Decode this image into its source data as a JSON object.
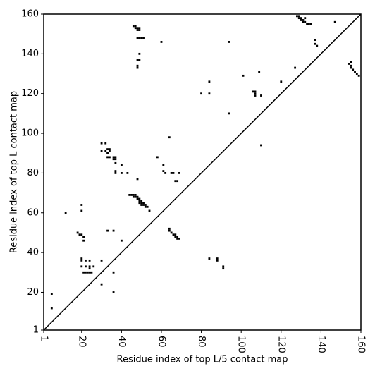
{
  "chart_data": {
    "type": "scatter",
    "xlabel": "Residue index of top L/5 contact map",
    "ylabel": "Residue index of top L contact map",
    "xlim": [
      1,
      160
    ],
    "ylim": [
      1,
      160
    ],
    "xticks": [
      1,
      20,
      40,
      60,
      80,
      100,
      120,
      140,
      160
    ],
    "yticks": [
      1,
      20,
      40,
      60,
      80,
      100,
      120,
      140,
      160
    ],
    "color": "#000000",
    "diagonal": true,
    "x": [
      46,
      47,
      47,
      48,
      48,
      49,
      49,
      48,
      49,
      50,
      51,
      49,
      48,
      49,
      48,
      48,
      60,
      94,
      84,
      84,
      80,
      94,
      101,
      106,
      107,
      107,
      107,
      109,
      110,
      120,
      127,
      128,
      129,
      129,
      130,
      130,
      131,
      131,
      132,
      132,
      133,
      134,
      135,
      137,
      137,
      138,
      147,
      154,
      155,
      155,
      155,
      156,
      157,
      158,
      159,
      30,
      32,
      30,
      32,
      33,
      34,
      33,
      34,
      33,
      34,
      36,
      36,
      37,
      37,
      37,
      37,
      37,
      40,
      40,
      43,
      48,
      44,
      45,
      46,
      46,
      47,
      47,
      48,
      48,
      49,
      49,
      50,
      50,
      51,
      51,
      52,
      52,
      53,
      49,
      50,
      54,
      58,
      61,
      61,
      62,
      64,
      65,
      66,
      67,
      68,
      69,
      12,
      20,
      20,
      5,
      5,
      18,
      19,
      20,
      21,
      21,
      20,
      20,
      22,
      24,
      20,
      22,
      24,
      24,
      26,
      21,
      22,
      23,
      24,
      25,
      30,
      30,
      33,
      36,
      36,
      36,
      40,
      64,
      64,
      65,
      66,
      67,
      67,
      68,
      68,
      69,
      84,
      88,
      88,
      91,
      91,
      110
    ],
    "values": [
      154,
      154,
      153,
      153,
      152,
      153,
      152,
      148,
      148,
      148,
      148,
      140,
      137,
      137,
      134,
      133,
      146,
      146,
      126,
      120,
      120,
      110,
      129,
      121,
      121,
      120,
      119,
      131,
      119,
      126,
      133,
      159,
      159,
      158,
      158,
      157,
      157,
      156,
      158,
      156,
      155,
      155,
      155,
      147,
      145,
      144,
      156,
      135,
      136,
      134,
      133,
      132,
      131,
      130,
      129,
      95,
      95,
      91,
      91,
      92,
      92,
      90,
      91,
      88,
      88,
      88,
      87,
      88,
      87,
      85,
      81,
      80,
      84,
      80,
      80,
      77,
      69,
      69,
      69,
      68,
      68,
      69,
      68,
      67,
      67,
      66,
      66,
      65,
      65,
      64,
      64,
      63,
      63,
      65,
      64,
      61,
      88,
      84,
      81,
      80,
      98,
      80,
      80,
      76,
      76,
      80,
      60,
      64,
      61,
      19,
      12,
      50,
      49,
      49,
      48,
      46,
      37,
      36,
      36,
      36,
      33,
      33,
      33,
      32,
      33,
      30,
      30,
      30,
      30,
      30,
      36,
      24,
      51,
      51,
      30,
      20,
      46,
      52,
      51,
      50,
      49,
      49,
      48,
      48,
      47,
      47,
      37,
      37,
      36,
      33,
      32,
      94
    ]
  }
}
